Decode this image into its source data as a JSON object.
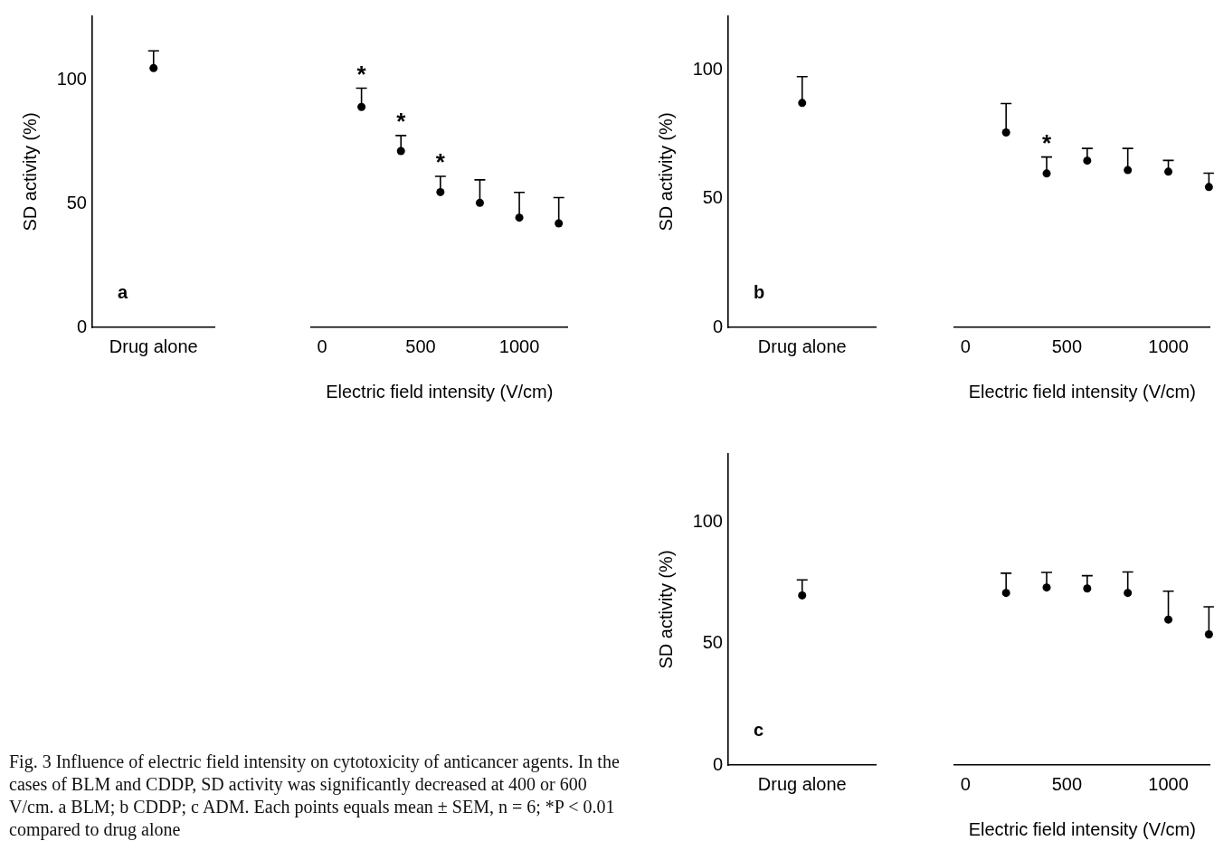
{
  "chart_data": [
    {
      "type": "scatter",
      "categories": [
        "Drug alone"
      ],
      "values": [
        105
      ],
      "errors": [
        [
          105,
          112
        ]
      ],
      "color": "#000000",
      "marker": "circle",
      "ylim": [
        0,
        126
      ],
      "yticks": [
        0,
        50,
        100
      ],
      "ylabel": "SD activity (%)",
      "annotations": [
        "a",
        "Fig. 3 Influence of electric field intensity on cytotoxicity of anticancer agents. In the cases of BLM and CDDP, SD activity was significantly decreased at 400 or 600 V/cm. a BLM; b CDDP; c ADM. Each points equals mean ± SEM, n = 6; *P < 0.01 compared to drug alone"
      ]
    },
    {
      "type": "scatter",
      "x": [
        200,
        400,
        600,
        800,
        1000,
        1200
      ],
      "values": [
        88,
        70.4,
        54,
        49.7,
        43.8,
        41.5
      ],
      "errors": [
        [
          88,
          95.5
        ],
        [
          70.4,
          76.6
        ],
        [
          54,
          60.3
        ],
        [
          49.7,
          58.9
        ],
        [
          43.8,
          53.9
        ],
        [
          41.5,
          51.8
        ]
      ],
      "color": "#000000",
      "marker": "circle",
      "xlim": [
        -55,
        1245
      ],
      "xticks": [
        0,
        500,
        1000
      ],
      "ylim": [
        0,
        100
      ],
      "yticks": [
        0,
        50,
        100
      ],
      "tick_labels": "x",
      "xlabel": "Electric field intensity (V/cm)",
      "annotations": [
        {
          "text": "*",
          "x": 200,
          "y": 95.5
        },
        {
          "text": "*",
          "x": 400,
          "y": 76.6
        },
        {
          "text": "*",
          "x": 600,
          "y": 60.3
        }
      ]
    },
    {
      "type": "scatter",
      "categories": [
        "Drug alone"
      ],
      "values": [
        87.3
      ],
      "errors": [
        [
          87.3,
          97.5
        ]
      ],
      "color": "#000000",
      "marker": "circle",
      "ylim": [
        0,
        121
      ],
      "yticks": [
        0,
        50,
        100
      ],
      "ylabel": "SD activity (%)",
      "annotations": [
        "b"
      ]
    },
    {
      "type": "scatter",
      "x": [
        200,
        400,
        600,
        800,
        1000,
        1200
      ],
      "values": [
        74.7,
        59,
        63.9,
        60.3,
        59.7,
        53.8
      ],
      "errors": [
        [
          74.7,
          85.8
        ],
        [
          59,
          65.3
        ],
        [
          63.9,
          68.6
        ],
        [
          60.3,
          68.6
        ],
        [
          59.7,
          64
        ],
        [
          53.8,
          59.1
        ]
      ],
      "color": "#000000",
      "marker": "circle",
      "xlim": [
        -55,
        1205
      ],
      "xticks": [
        0,
        500,
        1000
      ],
      "ylim": [
        0,
        100
      ],
      "yticks": [
        0,
        50,
        100
      ],
      "tick_labels": "x",
      "xlabel": "Electric field intensity (V/cm)",
      "annotations": [
        {
          "text": "*",
          "x": 400,
          "y": 65.3
        }
      ]
    },
    {
      "type": "scatter",
      "categories": [
        "Drug alone"
      ],
      "values": [
        69.8
      ],
      "errors": [
        [
          69.8,
          76.2
        ]
      ],
      "color": "#000000",
      "marker": "circle",
      "ylim": [
        0,
        128
      ],
      "yticks": [
        0,
        50,
        100
      ],
      "ylabel": "SD activity (%)",
      "annotations": [
        "c"
      ]
    },
    {
      "type": "scatter",
      "x": [
        200,
        400,
        600,
        800,
        1000,
        1200
      ],
      "values": [
        69.8,
        72,
        71.6,
        69.8,
        59,
        53
      ],
      "errors": [
        [
          69.8,
          77.8
        ],
        [
          72,
          78.1
        ],
        [
          71.6,
          76.8
        ],
        [
          69.8,
          78.3
        ],
        [
          59,
          70.5
        ],
        [
          53,
          64.2
        ]
      ],
      "color": "#000000",
      "marker": "circle",
      "xlim": [
        -55,
        1205
      ],
      "xticks": [
        0,
        500,
        1000
      ],
      "ylim": [
        0,
        100
      ],
      "yticks": [
        0,
        50,
        100
      ],
      "tick_labels": "x",
      "xlabel": "Electric field intensity (V/cm)"
    }
  ]
}
